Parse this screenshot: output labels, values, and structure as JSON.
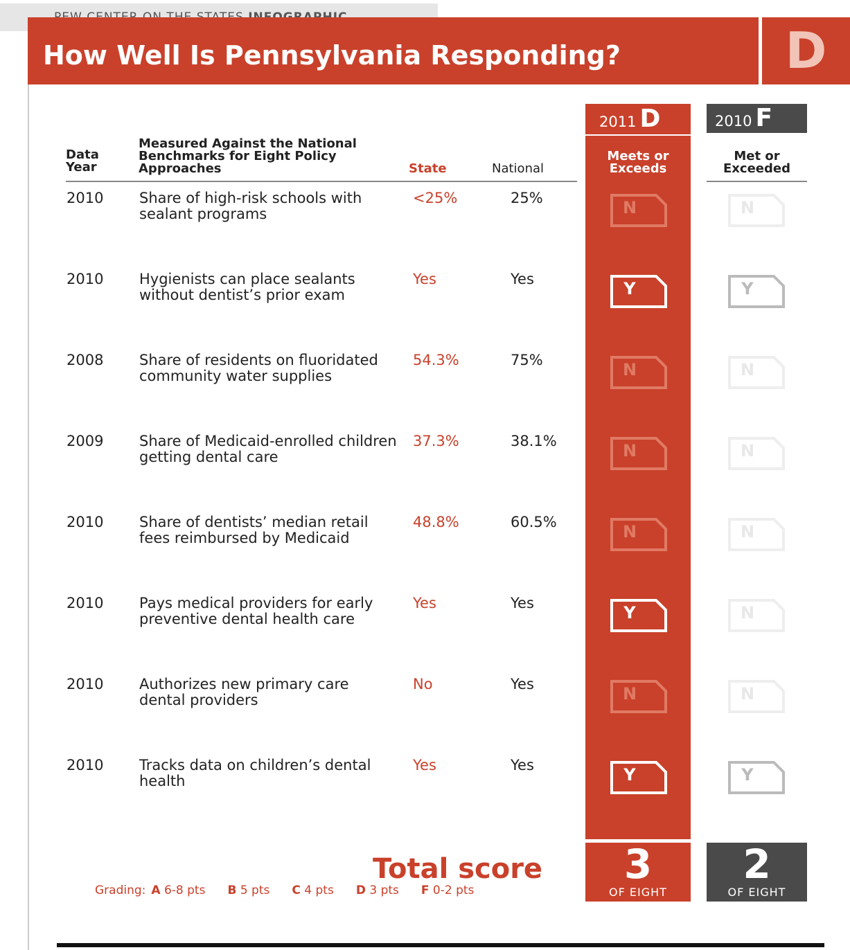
{
  "header": {
    "source": "PEW CENTER ON THE STATES",
    "source_bold": "INFOGRAPHIC",
    "title": "How Well Is Pennsylvania Responding?",
    "grade": "D"
  },
  "columns": {
    "data_year": "Data Year",
    "measure": "Measured Against the National Benchmarks for Eight Policy Approaches",
    "state": "State",
    "national": "National",
    "y2011": {
      "year": "2011",
      "grade": "D",
      "label": "Meets or Exceeds"
    },
    "y2010": {
      "year": "2010",
      "grade": "F",
      "label": "Met or Exceeded"
    }
  },
  "rows": [
    {
      "year": "2010",
      "measure": "Share of high-risk schools with sealant programs",
      "state": "<25%",
      "national": "25%",
      "r2011": "N",
      "r2010": "N"
    },
    {
      "year": "2010",
      "measure": "Hygienists can place sealants without dentist’s prior exam",
      "state": "Yes",
      "national": "Yes",
      "r2011": "Y",
      "r2010": "Y"
    },
    {
      "year": "2008",
      "measure": "Share of residents on fluoridated community water supplies",
      "state": "54.3%",
      "national": "75%",
      "r2011": "N",
      "r2010": "N"
    },
    {
      "year": "2009",
      "measure": "Share of Medicaid-enrolled children getting dental care",
      "state": "37.3%",
      "national": "38.1%",
      "r2011": "N",
      "r2010": "N"
    },
    {
      "year": "2010",
      "measure": "Share of dentists’ median retail fees reimbursed by Medicaid",
      "state": "48.8%",
      "national": "60.5%",
      "r2011": "N",
      "r2010": "N"
    },
    {
      "year": "2010",
      "measure": "Pays medical providers for early preventive dental health care",
      "state": "Yes",
      "national": "Yes",
      "r2011": "Y",
      "r2010": "N"
    },
    {
      "year": "2010",
      "measure": "Authorizes new primary care dental providers",
      "state": "No",
      "national": "Yes",
      "r2011": "N",
      "r2010": "N"
    },
    {
      "year": "2010",
      "measure": "Tracks data on children’s dental health",
      "state": "Yes",
      "national": "Yes",
      "r2011": "Y",
      "r2010": "Y"
    }
  ],
  "total": {
    "label": "Total score",
    "score2011": "3",
    "score2010": "2",
    "of": "OF EIGHT"
  },
  "grading": {
    "label": "Grading:",
    "items": [
      {
        "grade": "A",
        "pts": "6-8 pts"
      },
      {
        "grade": "B",
        "pts": "5 pts"
      },
      {
        "grade": "C",
        "pts": "4 pts"
      },
      {
        "grade": "D",
        "pts": "3 pts"
      },
      {
        "grade": "F",
        "pts": "0-2 pts"
      }
    ]
  }
}
